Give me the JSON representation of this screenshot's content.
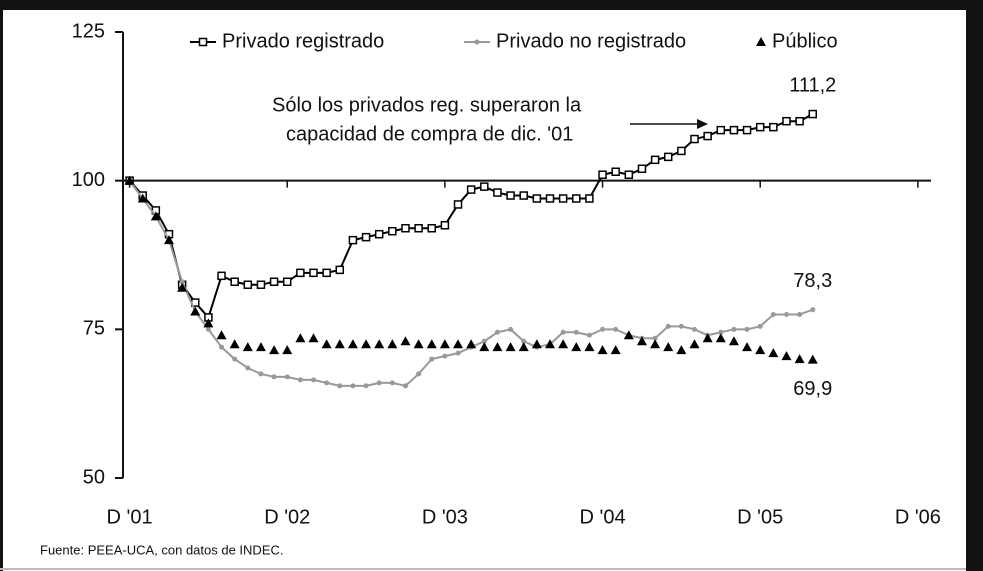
{
  "chart_data": {
    "type": "line",
    "annotation": [
      "Sólo los privados reg. superaron la",
      "capacidad de compra de dic. '01"
    ],
    "source": "Fuente: PEEA-UCA, con datos de INDEC.",
    "x": [
      0,
      1,
      2,
      3,
      4,
      5,
      6,
      7,
      8,
      9,
      10,
      11,
      12,
      13,
      14,
      15,
      16,
      17,
      18,
      19,
      20,
      21,
      22,
      23,
      24,
      25,
      26,
      27,
      28,
      29,
      30,
      31,
      32,
      33,
      34,
      35,
      36,
      37,
      38,
      39,
      40,
      41,
      42,
      43,
      44,
      45,
      46,
      47,
      48,
      49,
      50,
      51,
      52
    ],
    "xlim": [
      -0.5,
      61
    ],
    "xticks": [
      {
        "value": 0,
        "label": "D '01"
      },
      {
        "value": 12,
        "label": "D '02"
      },
      {
        "value": 24,
        "label": "D '03"
      },
      {
        "value": 36,
        "label": "D '04"
      },
      {
        "value": 48,
        "label": "D '05"
      },
      {
        "value": 60,
        "label": "D '06"
      }
    ],
    "ylim": [
      50,
      125
    ],
    "yticks": [
      50,
      75,
      100,
      125
    ],
    "x_axis_at": 100,
    "series": [
      {
        "name": "Privado registrado",
        "color": "#000000",
        "marker": "square",
        "line": true,
        "values": [
          100,
          97.5,
          95,
          91,
          82.5,
          79.5,
          77,
          84,
          83,
          82.5,
          82.5,
          83,
          83,
          84.5,
          84.5,
          84.5,
          85,
          90,
          90.5,
          91,
          91.5,
          92,
          92,
          92,
          92.5,
          96,
          98.5,
          99,
          98,
          97.5,
          97.5,
          97,
          97,
          97,
          97,
          97,
          101,
          101.5,
          101,
          102,
          103.5,
          104,
          105,
          107,
          107.5,
          108.5,
          108.5,
          108.5,
          109,
          109,
          110,
          110,
          111.2
        ],
        "value_labels": [
          null,
          null,
          null,
          null,
          null,
          null,
          null,
          null,
          null,
          null,
          null,
          null,
          null,
          null,
          null,
          null,
          null,
          null,
          null,
          null,
          null,
          null,
          null,
          null,
          null,
          null,
          null,
          null,
          null,
          null,
          null,
          null,
          null,
          null,
          null,
          null,
          null,
          null,
          null,
          null,
          null,
          null,
          null,
          null,
          null,
          null,
          null,
          null,
          null,
          null,
          null,
          null,
          "111,2"
        ]
      },
      {
        "name": "Privado no registrado",
        "color": "#999999",
        "marker": "circle",
        "line": true,
        "values": [
          100,
          97,
          94,
          90,
          83,
          78,
          75,
          72,
          70,
          68.5,
          67.5,
          67,
          67,
          66.5,
          66.5,
          66,
          65.5,
          65.5,
          65.5,
          66,
          66,
          65.5,
          67.5,
          70,
          70.5,
          71,
          72,
          73,
          74.5,
          75,
          73,
          72,
          72.5,
          74.5,
          74.5,
          74,
          75,
          75,
          74,
          73.5,
          73.5,
          75.5,
          75.5,
          75,
          74,
          74.5,
          75,
          75,
          75.5,
          77.5,
          77.5,
          77.5,
          78.3
        ],
        "value_labels": [
          null,
          null,
          null,
          null,
          null,
          null,
          null,
          null,
          null,
          null,
          null,
          null,
          null,
          null,
          null,
          null,
          null,
          null,
          null,
          null,
          null,
          null,
          null,
          null,
          null,
          null,
          null,
          null,
          null,
          null,
          null,
          null,
          null,
          null,
          null,
          null,
          null,
          null,
          null,
          null,
          null,
          null,
          null,
          null,
          null,
          null,
          null,
          null,
          null,
          null,
          null,
          null,
          "78,3"
        ]
      },
      {
        "name": "Público",
        "color": "#000000",
        "marker": "triangle",
        "line": false,
        "values": [
          100,
          97,
          94,
          90,
          82,
          78,
          76,
          74,
          72.5,
          72,
          72,
          71.5,
          71.5,
          73.5,
          73.5,
          72.5,
          72.5,
          72.5,
          72.5,
          72.5,
          72.5,
          73,
          72.5,
          72.5,
          72.5,
          72.5,
          72.5,
          72,
          72,
          72,
          72,
          72.5,
          72.5,
          72.5,
          72,
          72,
          71.5,
          71.5,
          74,
          73,
          72.5,
          72,
          71.5,
          72.5,
          73.5,
          73.5,
          73,
          72,
          71.5,
          71,
          70.5,
          70,
          69.9
        ],
        "value_labels": [
          null,
          null,
          null,
          null,
          null,
          null,
          null,
          null,
          null,
          null,
          null,
          null,
          null,
          null,
          null,
          null,
          null,
          null,
          null,
          null,
          null,
          null,
          null,
          null,
          null,
          null,
          null,
          null,
          null,
          null,
          null,
          null,
          null,
          null,
          null,
          null,
          null,
          null,
          null,
          null,
          null,
          null,
          null,
          null,
          null,
          null,
          null,
          null,
          null,
          null,
          null,
          null,
          "69,9"
        ]
      }
    ]
  }
}
